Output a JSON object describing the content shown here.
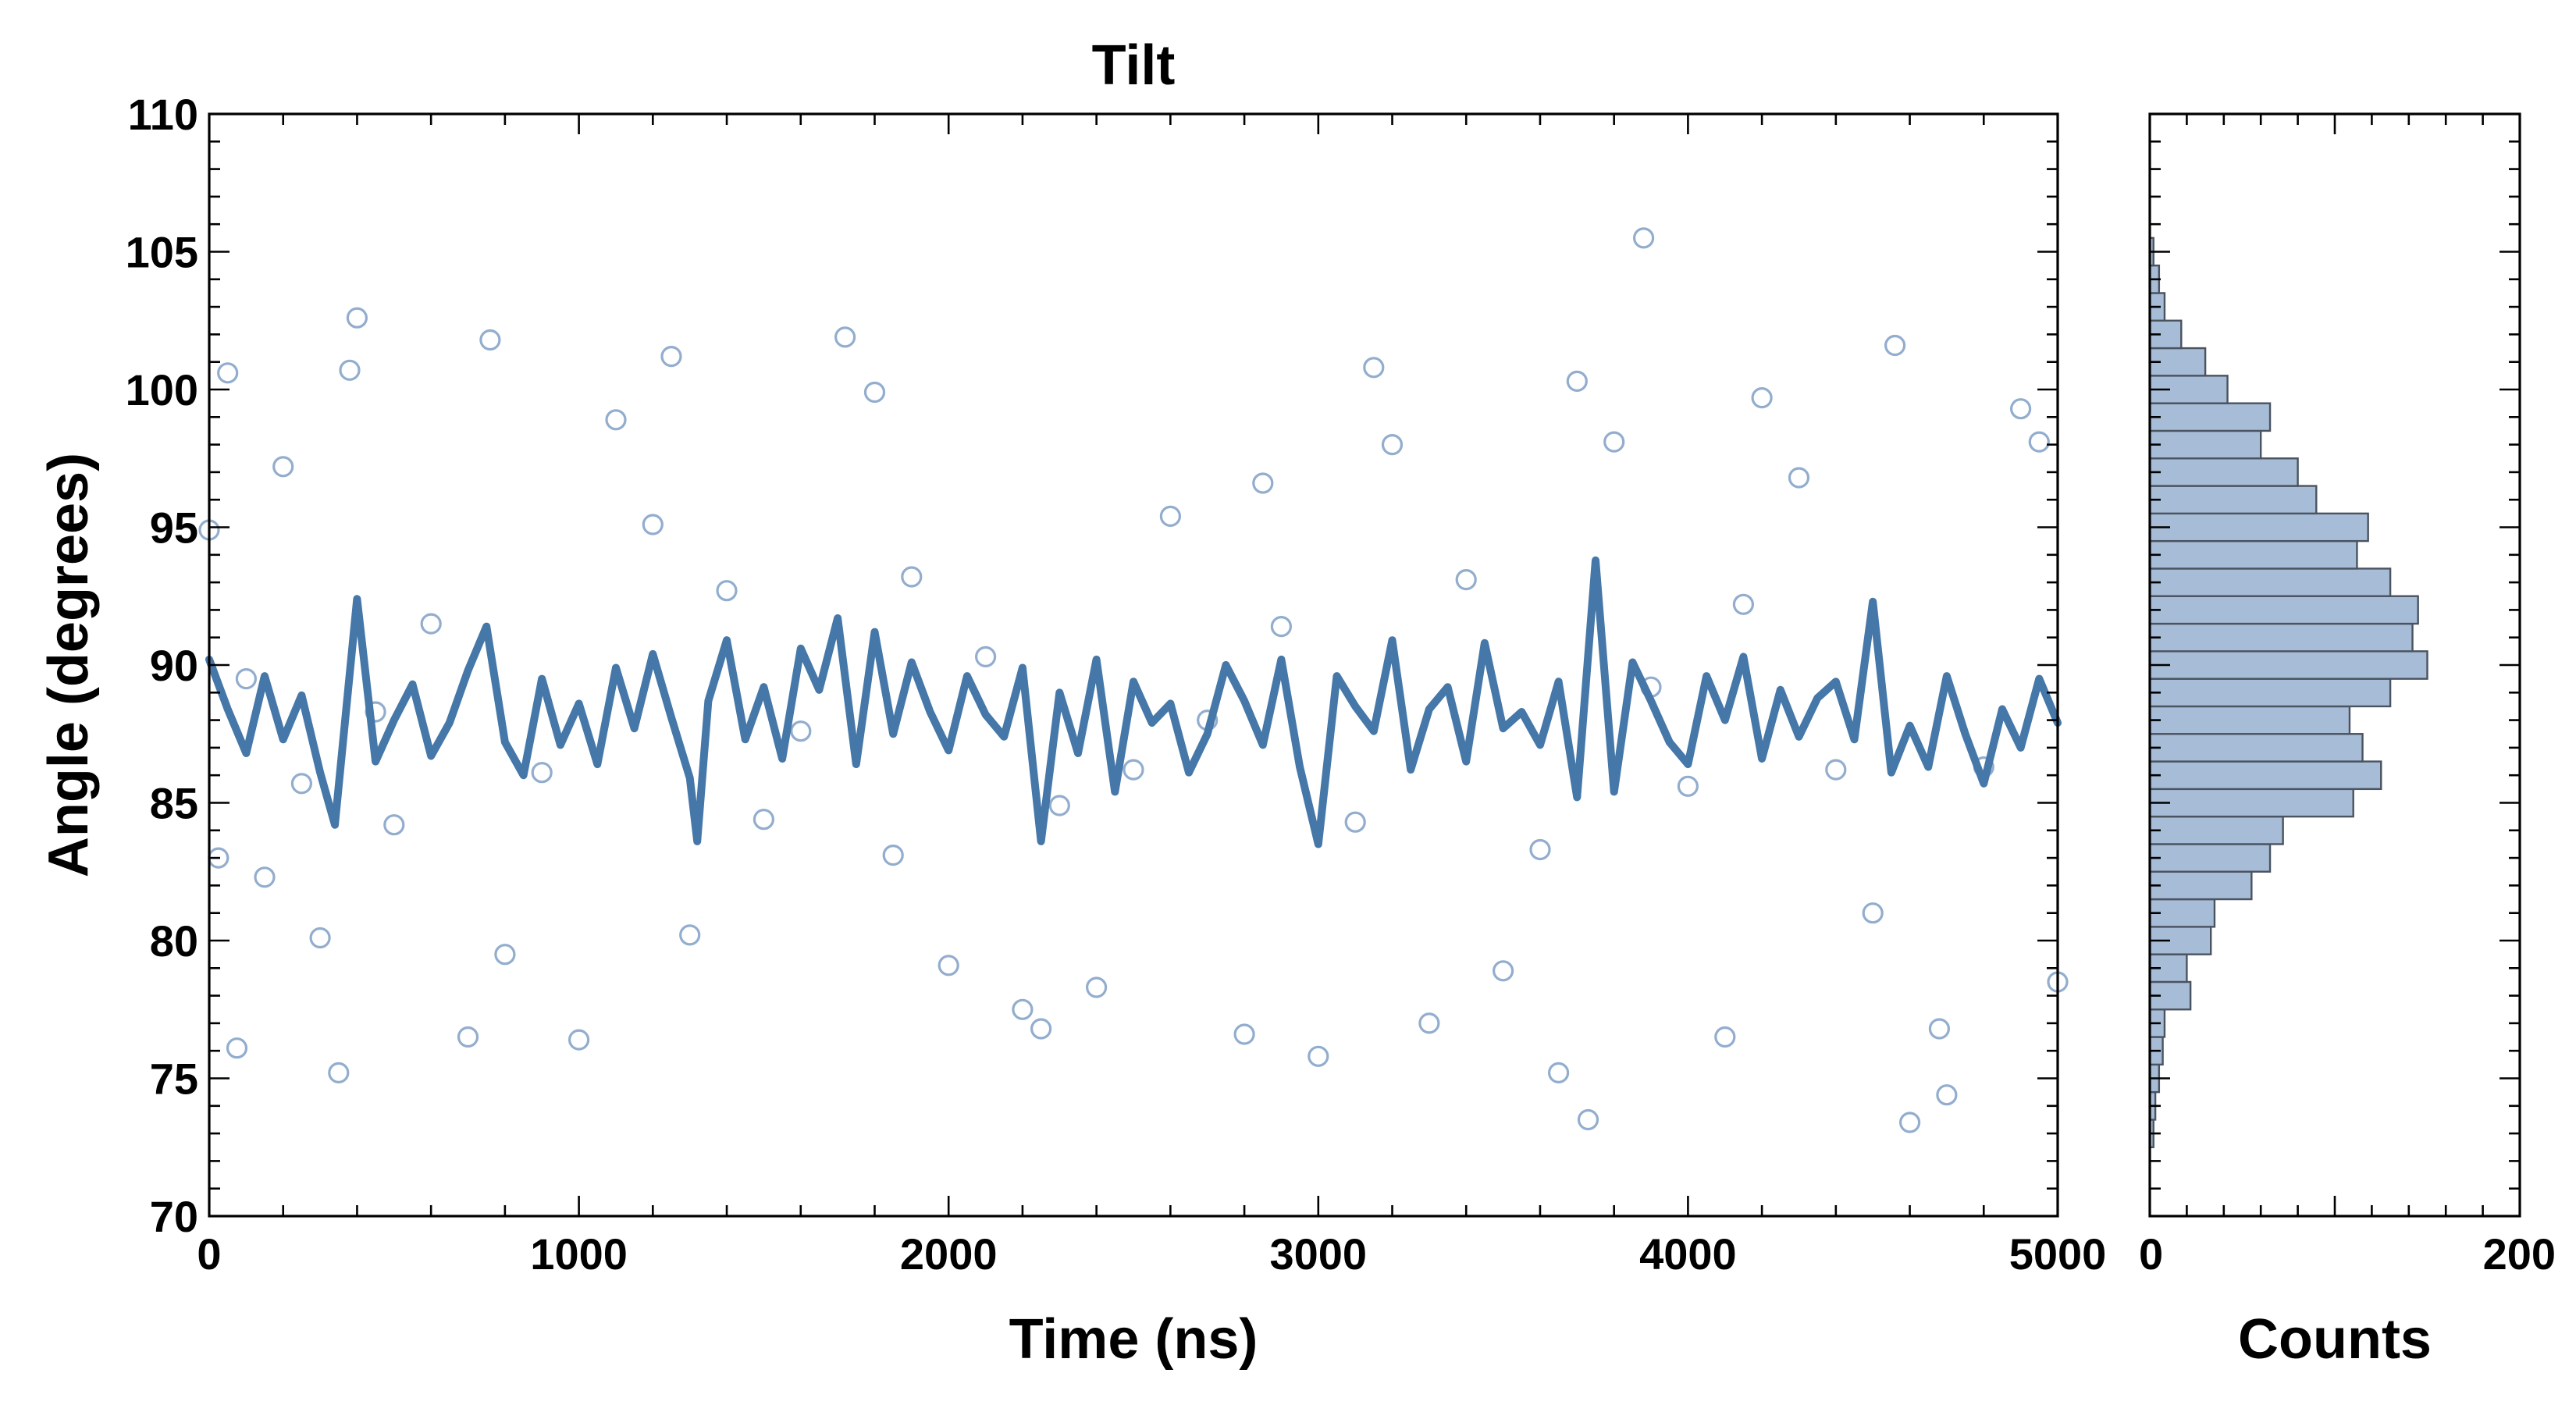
{
  "chart_data": [
    {
      "type": "scatter",
      "title": "Tilt",
      "xlabel": "Time (ns)",
      "ylabel": "Angle (degrees)",
      "xlim": [
        0,
        5000
      ],
      "ylim": [
        70,
        110
      ],
      "xticks": [
        0,
        1000,
        2000,
        3000,
        4000,
        5000
      ],
      "yticks": [
        70,
        75,
        80,
        85,
        90,
        95,
        100,
        105,
        110
      ],
      "grid": false,
      "colors": {
        "points": "#7f9fc5",
        "line": "#4577a8"
      },
      "series": [
        {
          "style": "open-circle scatter",
          "summary": {
            "n_points": 1000,
            "mean": 88.5,
            "std": 4.6,
            "min": 73.4,
            "max": 105.5
          },
          "x": [
            0,
            25,
            50,
            75,
            100,
            150,
            200,
            250,
            300,
            350,
            380,
            400,
            450,
            500,
            600,
            700,
            760,
            800,
            900,
            1000,
            1100,
            1200,
            1250,
            1300,
            1400,
            1500,
            1600,
            1720,
            1800,
            1850,
            1900,
            2000,
            2100,
            2200,
            2250,
            2300,
            2400,
            2500,
            2600,
            2700,
            2800,
            2850,
            2900,
            3000,
            3100,
            3150,
            3200,
            3300,
            3400,
            3500,
            3600,
            3650,
            3700,
            3730,
            3800,
            3880,
            3900,
            4000,
            4100,
            4150,
            4200,
            4300,
            4400,
            4500,
            4560,
            4600,
            4680,
            4700,
            4800,
            4900,
            4950,
            5000
          ],
          "y": [
            94.9,
            83.0,
            100.6,
            76.1,
            89.5,
            82.3,
            97.2,
            85.7,
            80.1,
            75.2,
            100.7,
            102.6,
            88.3,
            84.2,
            91.5,
            76.5,
            101.8,
            79.5,
            86.1,
            76.4,
            98.9,
            95.1,
            101.2,
            80.2,
            92.7,
            84.4,
            87.6,
            101.9,
            99.9,
            83.1,
            93.2,
            79.1,
            90.3,
            77.5,
            76.8,
            84.9,
            78.3,
            86.2,
            95.4,
            88.0,
            76.6,
            96.6,
            91.4,
            75.8,
            84.3,
            100.8,
            98.0,
            77.0,
            93.1,
            78.9,
            83.3,
            75.2,
            100.3,
            73.5,
            98.1,
            105.5,
            89.2,
            85.6,
            76.5,
            92.2,
            99.7,
            96.8,
            86.2,
            81.0,
            101.6,
            73.4,
            76.8,
            74.4,
            86.3,
            99.3,
            98.1,
            78.5
          ]
        },
        {
          "style": "running-average line",
          "x": [
            0,
            50,
            100,
            150,
            200,
            250,
            300,
            340,
            400,
            450,
            500,
            550,
            600,
            650,
            700,
            750,
            800,
            850,
            900,
            950,
            1000,
            1050,
            1100,
            1150,
            1200,
            1250,
            1300,
            1320,
            1350,
            1400,
            1450,
            1500,
            1550,
            1600,
            1650,
            1700,
            1750,
            1800,
            1850,
            1900,
            1950,
            2000,
            2050,
            2100,
            2150,
            2200,
            2250,
            2300,
            2350,
            2400,
            2450,
            2500,
            2550,
            2600,
            2650,
            2700,
            2750,
            2800,
            2850,
            2900,
            2950,
            3000,
            3050,
            3100,
            3150,
            3200,
            3250,
            3300,
            3350,
            3400,
            3450,
            3500,
            3550,
            3600,
            3650,
            3700,
            3750,
            3800,
            3850,
            3900,
            3950,
            4000,
            4050,
            4100,
            4150,
            4200,
            4250,
            4300,
            4350,
            4400,
            4450,
            4500,
            4550,
            4600,
            4650,
            4700,
            4750,
            4800,
            4850,
            4900,
            4950,
            5000
          ],
          "y": [
            90.2,
            88.4,
            86.8,
            89.6,
            87.3,
            88.9,
            86.1,
            84.2,
            92.4,
            86.5,
            88.0,
            89.3,
            86.7,
            87.9,
            89.8,
            91.4,
            87.2,
            86.0,
            89.5,
            87.1,
            88.6,
            86.4,
            89.9,
            87.7,
            90.4,
            88.1,
            85.9,
            83.6,
            88.7,
            90.9,
            87.3,
            89.2,
            86.6,
            90.6,
            89.1,
            91.7,
            86.4,
            91.2,
            87.5,
            90.1,
            88.3,
            86.9,
            89.6,
            88.2,
            87.4,
            89.9,
            83.6,
            89.0,
            86.8,
            90.2,
            85.4,
            89.4,
            87.9,
            88.6,
            86.1,
            87.5,
            90.0,
            88.7,
            87.1,
            90.2,
            86.3,
            83.5,
            89.6,
            88.5,
            87.6,
            90.9,
            86.2,
            88.4,
            89.2,
            86.5,
            90.8,
            87.7,
            88.3,
            87.1,
            89.4,
            85.2,
            93.8,
            85.4,
            90.1,
            88.7,
            87.2,
            86.4,
            89.6,
            88.0,
            90.3,
            86.6,
            89.1,
            87.4,
            88.8,
            89.4,
            87.3,
            92.3,
            86.1,
            87.8,
            86.3,
            89.6,
            87.5,
            85.7,
            88.4,
            87.0,
            89.5,
            87.9
          ]
        }
      ]
    },
    {
      "type": "bar",
      "orientation": "horizontal",
      "xlabel": "Counts",
      "xlim": [
        0,
        200
      ],
      "xticks": [
        0,
        200
      ],
      "ylim": [
        70,
        110
      ],
      "bin_width": 1,
      "colors": {
        "fill": "#a7bcd6",
        "edge": "#4a5360"
      },
      "categories": [
        73,
        74,
        75,
        76,
        77,
        78,
        79,
        80,
        81,
        82,
        83,
        84,
        85,
        86,
        87,
        88,
        89,
        90,
        91,
        92,
        93,
        94,
        95,
        96,
        97,
        98,
        99,
        100,
        101,
        102,
        103,
        104,
        105
      ],
      "values": [
        2,
        3,
        5,
        7,
        8,
        22,
        20,
        33,
        35,
        55,
        65,
        72,
        110,
        125,
        115,
        108,
        130,
        150,
        142,
        145,
        130,
        112,
        118,
        90,
        80,
        60,
        65,
        42,
        30,
        17,
        8,
        5,
        2
      ]
    }
  ]
}
